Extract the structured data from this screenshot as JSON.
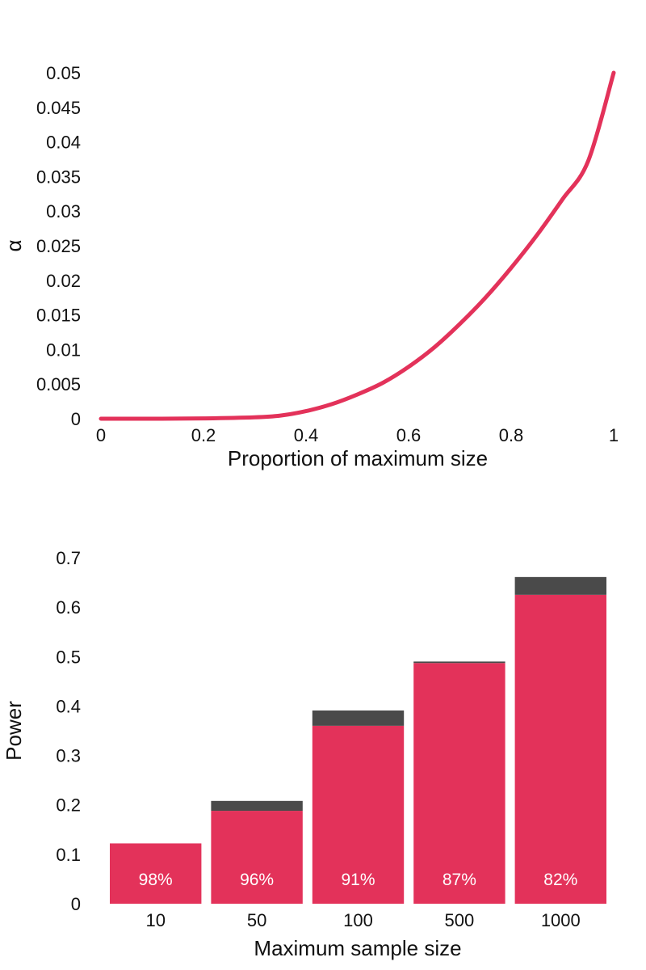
{
  "chart_data": [
    {
      "type": "line",
      "title": "",
      "xlabel": "Proportion of maximum size",
      "ylabel": "α",
      "xlim": [
        0,
        1
      ],
      "ylim": [
        0,
        0.05
      ],
      "xticks": [
        "0",
        "0.2",
        "0.4",
        "0.6",
        "0.8",
        "1"
      ],
      "yticks": [
        "0",
        "0.005",
        "0.01",
        "0.015",
        "0.02",
        "0.025",
        "0.03",
        "0.035",
        "0.04",
        "0.045",
        "0.05"
      ],
      "grid": false,
      "series": [
        {
          "color": "#e3325a",
          "x": [
            0,
            0.1,
            0.2,
            0.3,
            0.35,
            0.4,
            0.45,
            0.5,
            0.55,
            0.6,
            0.65,
            0.7,
            0.75,
            0.8,
            0.85,
            0.9,
            0.95,
            1.0
          ],
          "y": [
            0,
            0,
            4e-05,
            0.0002,
            0.00045,
            0.0011,
            0.0021,
            0.0035,
            0.0052,
            0.0075,
            0.0103,
            0.0137,
            0.0175,
            0.0218,
            0.0265,
            0.0317,
            0.0372,
            0.05
          ]
        }
      ]
    },
    {
      "type": "bar",
      "title": "",
      "xlabel": "Maximum sample size",
      "ylabel": "Power",
      "ylim": [
        0,
        0.7
      ],
      "yticks": [
        "0",
        "0.1",
        "0.2",
        "0.3",
        "0.4",
        "0.5",
        "0.6",
        "0.7"
      ],
      "categories": [
        "10",
        "50",
        "100",
        "500",
        "1000"
      ],
      "grid": false,
      "series": [
        {
          "color": "#e3325a",
          "values": [
            0.122,
            0.188,
            0.36,
            0.487,
            0.625
          ]
        },
        {
          "color": "#4a4a4a",
          "values": [
            0.0,
            0.02,
            0.031,
            0.003,
            0.036
          ]
        }
      ],
      "bar_labels": [
        "98%",
        "96%",
        "91%",
        "87%",
        "82%"
      ]
    }
  ]
}
